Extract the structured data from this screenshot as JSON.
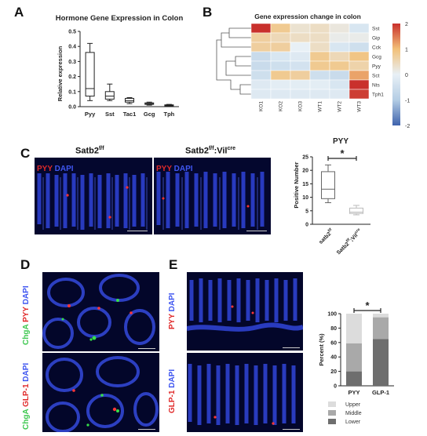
{
  "panels": {
    "a": "A",
    "b": "B",
    "c": "C",
    "d": "D",
    "e": "E"
  },
  "colors": {
    "dapi": "#2434d6",
    "pyy": "#e02a2a",
    "chga": "#2fd64a",
    "heat_high": "#c9302c",
    "heat_low": "#3f63ad",
    "bar_upper": "#dcdcdc",
    "bar_middle": "#a9a9a9",
    "bar_lower": "#6e6e6e"
  },
  "chart_data": [
    {
      "id": "A",
      "type": "box",
      "title": "Hormone Gene Expression in Colon",
      "ylabel": "Relative expression",
      "ylim": [
        0,
        0.5
      ],
      "yticks": [
        "0.0",
        "0.1",
        "0.2",
        "0.3",
        "0.4",
        "0.5"
      ],
      "categories": [
        "Pyy",
        "Sst",
        "Tac1",
        "Gcg",
        "Tph"
      ],
      "boxes": [
        {
          "min": 0.04,
          "q1": 0.07,
          "median": 0.12,
          "q3": 0.36,
          "max": 0.42
        },
        {
          "min": 0.04,
          "q1": 0.05,
          "median": 0.07,
          "q3": 0.1,
          "max": 0.15
        },
        {
          "min": 0.02,
          "q1": 0.03,
          "median": 0.04,
          "q3": 0.055,
          "max": 0.06
        },
        {
          "min": 0.01,
          "q1": 0.015,
          "median": 0.02,
          "q3": 0.025,
          "max": 0.03
        },
        {
          "min": 0.003,
          "q1": 0.005,
          "median": 0.008,
          "q3": 0.012,
          "max": 0.015
        }
      ]
    },
    {
      "id": "B",
      "type": "heatmap",
      "title": "Gene expression change in colon",
      "rows": [
        "Sst",
        "Gip",
        "Cck",
        "Gcg",
        "Pyy",
        "Sct",
        "Nts",
        "Tph1"
      ],
      "columns": [
        "KO1",
        "KO2",
        "KO3",
        "WT1",
        "WT2",
        "WT3"
      ],
      "values": [
        [
          2.0,
          0.8,
          0.3,
          0.4,
          0.2,
          -0.3
        ],
        [
          0.7,
          0.5,
          0.4,
          0.4,
          0.1,
          0.1
        ],
        [
          0.7,
          0.7,
          0.0,
          0.4,
          -0.3,
          -0.5
        ],
        [
          -0.6,
          -0.3,
          -0.2,
          0.8,
          0.5,
          0.9
        ],
        [
          -0.6,
          -0.5,
          -0.4,
          0.8,
          0.8,
          0.6
        ],
        [
          -0.5,
          0.8,
          0.7,
          -0.5,
          -0.6,
          1.2
        ],
        [
          -0.2,
          -0.1,
          -0.1,
          -0.1,
          -0.3,
          2.0
        ],
        [
          -0.2,
          -0.2,
          -0.2,
          -0.2,
          -0.2,
          1.9
        ]
      ],
      "scale_ticks": [
        "2",
        "1",
        "0",
        "-1",
        "-2"
      ],
      "vmin": -2,
      "vmax": 2
    },
    {
      "id": "C",
      "type": "box",
      "title": "PYY",
      "ylabel": "Positive Number",
      "ylim": [
        0,
        25
      ],
      "yticks": [
        "0",
        "5",
        "10",
        "15",
        "20",
        "25"
      ],
      "categories": [
        "satb2f/f",
        "Satb2f/f;Vilcre"
      ],
      "boxes": [
        {
          "min": 8,
          "q1": 9.5,
          "median": 13,
          "q3": 19.5,
          "max": 22
        },
        {
          "min": 3.5,
          "q1": 4,
          "median": 4.5,
          "q3": 6,
          "max": 7
        }
      ],
      "significance": "*"
    },
    {
      "id": "E",
      "type": "stacked_bar",
      "ylabel": "Percent (%)",
      "ylim": [
        0,
        100
      ],
      "yticks": [
        "0",
        "20",
        "40",
        "60",
        "80",
        "100"
      ],
      "categories": [
        "PYY",
        "GLP-1"
      ],
      "series": [
        {
          "name": "Lower",
          "values": [
            20,
            65
          ]
        },
        {
          "name": "Middle",
          "values": [
            39,
            30
          ]
        },
        {
          "name": "Upper",
          "values": [
            41,
            5
          ]
        }
      ],
      "significance": "*"
    }
  ],
  "panel_c": {
    "image1_title": "Satb2",
    "image1_sup": "f/f",
    "image2_title": "Satb2",
    "image2_sup": "f/f",
    "image2_sep": ":Vil",
    "image2_sup2": "cre",
    "stain_pyy": "PYY",
    "stain_dapi": "DAPI",
    "box_x1": "satb2",
    "box_x1_sup": "f/f",
    "box_x2": "Satb2",
    "box_x2_sup": "f/f",
    "box_x2_mid": ";Vil",
    "box_x2_sup2": "cre"
  },
  "panel_d": {
    "chga": "ChgA",
    "pyy": "PYY",
    "dapi": "DAPI",
    "glp1": "GLP-1"
  },
  "panel_e": {
    "pyy": "PYY",
    "dapi": "DAPI",
    "glp1": "GLP-1"
  }
}
